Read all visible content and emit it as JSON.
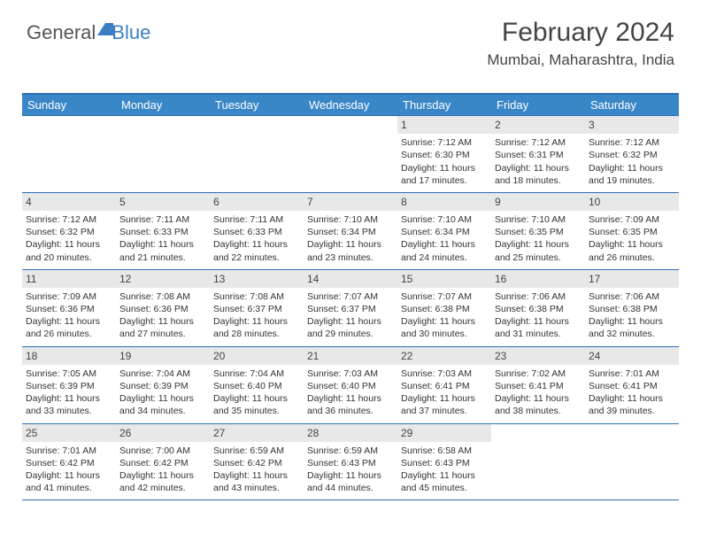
{
  "logo": {
    "part1": "General",
    "part2": "Blue"
  },
  "title": "February 2024",
  "location": "Mumbai, Maharashtra, India",
  "colors": {
    "header_bg": "#3a87c8",
    "border": "#2b6fb0",
    "daynum_bg": "#e8e8e8",
    "text": "#333333",
    "logo_accent": "#3a7fc4"
  },
  "headers": [
    "Sunday",
    "Monday",
    "Tuesday",
    "Wednesday",
    "Thursday",
    "Friday",
    "Saturday"
  ],
  "weeks": [
    [
      {
        "n": "",
        "sr": "",
        "ss": "",
        "dl": ""
      },
      {
        "n": "",
        "sr": "",
        "ss": "",
        "dl": ""
      },
      {
        "n": "",
        "sr": "",
        "ss": "",
        "dl": ""
      },
      {
        "n": "",
        "sr": "",
        "ss": "",
        "dl": ""
      },
      {
        "n": "1",
        "sr": "Sunrise: 7:12 AM",
        "ss": "Sunset: 6:30 PM",
        "dl": "Daylight: 11 hours and 17 minutes."
      },
      {
        "n": "2",
        "sr": "Sunrise: 7:12 AM",
        "ss": "Sunset: 6:31 PM",
        "dl": "Daylight: 11 hours and 18 minutes."
      },
      {
        "n": "3",
        "sr": "Sunrise: 7:12 AM",
        "ss": "Sunset: 6:32 PM",
        "dl": "Daylight: 11 hours and 19 minutes."
      }
    ],
    [
      {
        "n": "4",
        "sr": "Sunrise: 7:12 AM",
        "ss": "Sunset: 6:32 PM",
        "dl": "Daylight: 11 hours and 20 minutes."
      },
      {
        "n": "5",
        "sr": "Sunrise: 7:11 AM",
        "ss": "Sunset: 6:33 PM",
        "dl": "Daylight: 11 hours and 21 minutes."
      },
      {
        "n": "6",
        "sr": "Sunrise: 7:11 AM",
        "ss": "Sunset: 6:33 PM",
        "dl": "Daylight: 11 hours and 22 minutes."
      },
      {
        "n": "7",
        "sr": "Sunrise: 7:10 AM",
        "ss": "Sunset: 6:34 PM",
        "dl": "Daylight: 11 hours and 23 minutes."
      },
      {
        "n": "8",
        "sr": "Sunrise: 7:10 AM",
        "ss": "Sunset: 6:34 PM",
        "dl": "Daylight: 11 hours and 24 minutes."
      },
      {
        "n": "9",
        "sr": "Sunrise: 7:10 AM",
        "ss": "Sunset: 6:35 PM",
        "dl": "Daylight: 11 hours and 25 minutes."
      },
      {
        "n": "10",
        "sr": "Sunrise: 7:09 AM",
        "ss": "Sunset: 6:35 PM",
        "dl": "Daylight: 11 hours and 26 minutes."
      }
    ],
    [
      {
        "n": "11",
        "sr": "Sunrise: 7:09 AM",
        "ss": "Sunset: 6:36 PM",
        "dl": "Daylight: 11 hours and 26 minutes."
      },
      {
        "n": "12",
        "sr": "Sunrise: 7:08 AM",
        "ss": "Sunset: 6:36 PM",
        "dl": "Daylight: 11 hours and 27 minutes."
      },
      {
        "n": "13",
        "sr": "Sunrise: 7:08 AM",
        "ss": "Sunset: 6:37 PM",
        "dl": "Daylight: 11 hours and 28 minutes."
      },
      {
        "n": "14",
        "sr": "Sunrise: 7:07 AM",
        "ss": "Sunset: 6:37 PM",
        "dl": "Daylight: 11 hours and 29 minutes."
      },
      {
        "n": "15",
        "sr": "Sunrise: 7:07 AM",
        "ss": "Sunset: 6:38 PM",
        "dl": "Daylight: 11 hours and 30 minutes."
      },
      {
        "n": "16",
        "sr": "Sunrise: 7:06 AM",
        "ss": "Sunset: 6:38 PM",
        "dl": "Daylight: 11 hours and 31 minutes."
      },
      {
        "n": "17",
        "sr": "Sunrise: 7:06 AM",
        "ss": "Sunset: 6:38 PM",
        "dl": "Daylight: 11 hours and 32 minutes."
      }
    ],
    [
      {
        "n": "18",
        "sr": "Sunrise: 7:05 AM",
        "ss": "Sunset: 6:39 PM",
        "dl": "Daylight: 11 hours and 33 minutes."
      },
      {
        "n": "19",
        "sr": "Sunrise: 7:04 AM",
        "ss": "Sunset: 6:39 PM",
        "dl": "Daylight: 11 hours and 34 minutes."
      },
      {
        "n": "20",
        "sr": "Sunrise: 7:04 AM",
        "ss": "Sunset: 6:40 PM",
        "dl": "Daylight: 11 hours and 35 minutes."
      },
      {
        "n": "21",
        "sr": "Sunrise: 7:03 AM",
        "ss": "Sunset: 6:40 PM",
        "dl": "Daylight: 11 hours and 36 minutes."
      },
      {
        "n": "22",
        "sr": "Sunrise: 7:03 AM",
        "ss": "Sunset: 6:41 PM",
        "dl": "Daylight: 11 hours and 37 minutes."
      },
      {
        "n": "23",
        "sr": "Sunrise: 7:02 AM",
        "ss": "Sunset: 6:41 PM",
        "dl": "Daylight: 11 hours and 38 minutes."
      },
      {
        "n": "24",
        "sr": "Sunrise: 7:01 AM",
        "ss": "Sunset: 6:41 PM",
        "dl": "Daylight: 11 hours and 39 minutes."
      }
    ],
    [
      {
        "n": "25",
        "sr": "Sunrise: 7:01 AM",
        "ss": "Sunset: 6:42 PM",
        "dl": "Daylight: 11 hours and 41 minutes."
      },
      {
        "n": "26",
        "sr": "Sunrise: 7:00 AM",
        "ss": "Sunset: 6:42 PM",
        "dl": "Daylight: 11 hours and 42 minutes."
      },
      {
        "n": "27",
        "sr": "Sunrise: 6:59 AM",
        "ss": "Sunset: 6:42 PM",
        "dl": "Daylight: 11 hours and 43 minutes."
      },
      {
        "n": "28",
        "sr": "Sunrise: 6:59 AM",
        "ss": "Sunset: 6:43 PM",
        "dl": "Daylight: 11 hours and 44 minutes."
      },
      {
        "n": "29",
        "sr": "Sunrise: 6:58 AM",
        "ss": "Sunset: 6:43 PM",
        "dl": "Daylight: 11 hours and 45 minutes."
      },
      {
        "n": "",
        "sr": "",
        "ss": "",
        "dl": ""
      },
      {
        "n": "",
        "sr": "",
        "ss": "",
        "dl": ""
      }
    ]
  ]
}
